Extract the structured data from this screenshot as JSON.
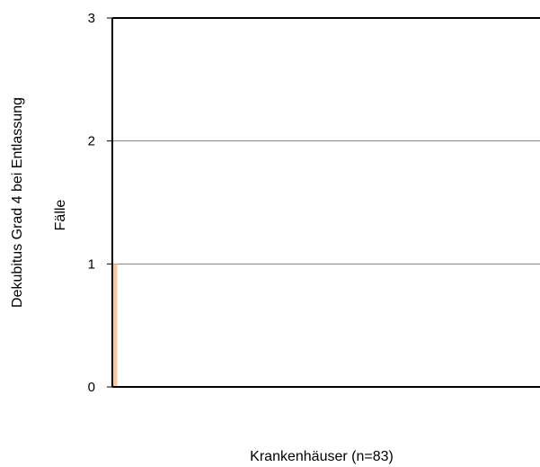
{
  "chart_data": {
    "type": "bar",
    "title": "",
    "ylabel_outer": "Dekubitus Grad 4 bei Entlassung",
    "ylabel": "Fälle",
    "xlabel": "Krankenhäuser (n=83)",
    "ylim": [
      0,
      3
    ],
    "yticks": [
      "0",
      "1",
      "2",
      "3"
    ],
    "grid": true,
    "bar_color": "#fbc79a",
    "n_categories": 83,
    "values": [
      1,
      0,
      0,
      0,
      0,
      0,
      0,
      0,
      0,
      0,
      0,
      0,
      0,
      0,
      0,
      0,
      0,
      0,
      0,
      0,
      0,
      0,
      0,
      0,
      0,
      0,
      0,
      0,
      0,
      0,
      0,
      0,
      0,
      0,
      0,
      0,
      0,
      0,
      0,
      0,
      0,
      0,
      0,
      0,
      0,
      0,
      0,
      0,
      0,
      0,
      0,
      0,
      0,
      0,
      0,
      0,
      0,
      0,
      0,
      0,
      0,
      0,
      0,
      0,
      0,
      0,
      0,
      0,
      0,
      0,
      0,
      0,
      0,
      0,
      0,
      0,
      0,
      0,
      0,
      0,
      0,
      0,
      0
    ]
  }
}
